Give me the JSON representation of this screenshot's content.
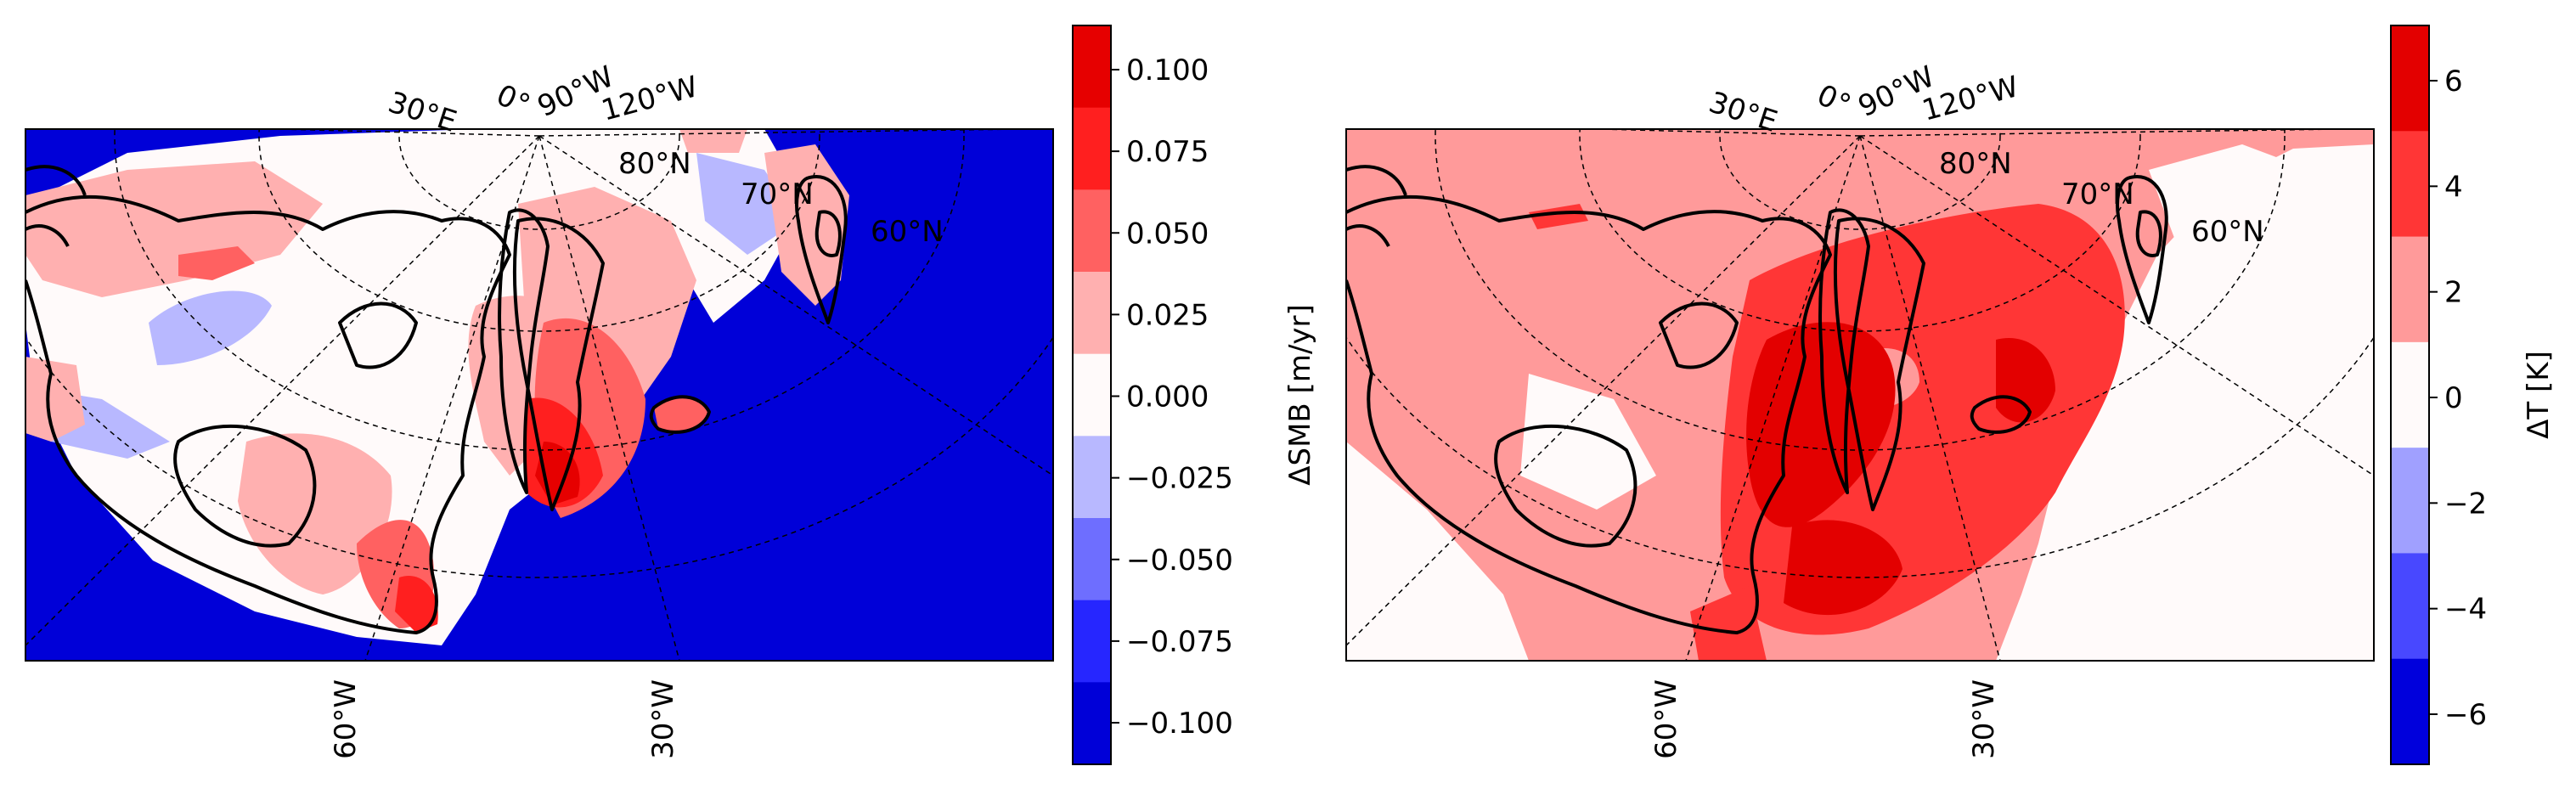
{
  "panels": [
    {
      "id": "smb",
      "colorbar": {
        "label": "ΔSMB [m/yr]",
        "ticks": [
          "0.100",
          "0.075",
          "0.050",
          "0.025",
          "0.000",
          "−0.025",
          "−0.050",
          "−0.075",
          "−0.100"
        ],
        "levels": [
          "#e60000",
          "#ff1f1f",
          "#ff6161",
          "#ffb0b0",
          "#fffafa",
          "#b8b8ff",
          "#6e6eff",
          "#2626ff",
          "#0000d8"
        ]
      },
      "lon_labels_top": [
        "30°E",
        "0°",
        "90°W",
        "120°W"
      ],
      "lat_labels": [
        "80°N",
        "70°N",
        "60°N"
      ],
      "lon_labels_bottom": [
        "60°W",
        "30°W"
      ]
    },
    {
      "id": "temp",
      "colorbar": {
        "label": "ΔT [K]",
        "ticks": [
          "6",
          "4",
          "2",
          "0",
          "−2",
          "−4",
          "−6"
        ],
        "levels": [
          "#e30000",
          "#ff3636",
          "#ff9a9a",
          "#fffafa",
          "#a0a0ff",
          "#4848ff",
          "#0000dc"
        ]
      },
      "lon_labels_top": [
        "30°E",
        "0°",
        "90°W",
        "120°W"
      ],
      "lat_labels": [
        "80°N",
        "70°N",
        "60°N"
      ],
      "lon_labels_bottom": [
        "60°W",
        "30°W"
      ]
    }
  ]
}
